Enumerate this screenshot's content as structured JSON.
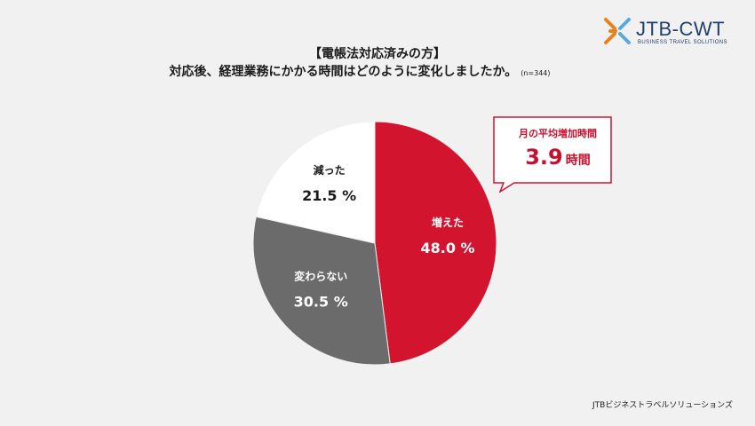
{
  "header": {
    "title": "【電帳法対応済みの方】",
    "question": "対応後、経理業務にかかる時間はどのように変化しましたか。",
    "sample": "(n=344)"
  },
  "logo": {
    "name": "JTB-CWT",
    "tagline": "BUSINESS TRAVEL SOLUTIONS"
  },
  "callout": {
    "label": "月の平均増加時間",
    "value": "3.9",
    "unit": "時間"
  },
  "footer": {
    "source": "JTBビジネストラベルソリューションズ"
  },
  "colors": {
    "increased": "#d2142f",
    "unchanged": "#6b6b6b",
    "decreased": "#ffffff",
    "logo_blue": "#1f3f6e",
    "logo_orange": "#e8821e"
  },
  "chart_data": {
    "type": "pie",
    "categories": [
      "増えた",
      "変わらない",
      "減った"
    ],
    "values": [
      48.0,
      30.5,
      21.5
    ],
    "value_labels": [
      "48.0 %",
      "30.5 %",
      "21.5 %"
    ],
    "start_angle": "12 o'clock",
    "direction": "clockwise"
  }
}
